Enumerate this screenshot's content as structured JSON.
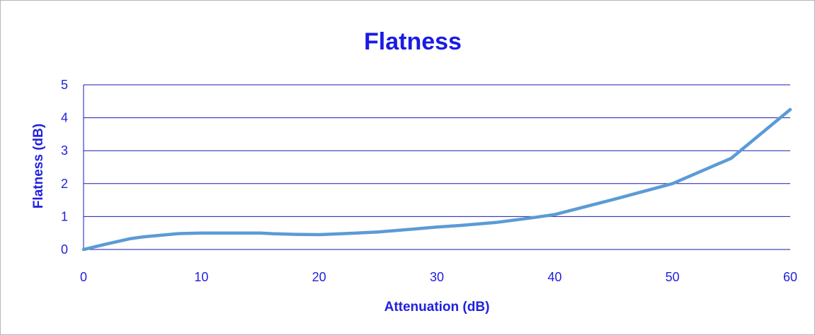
{
  "chart_data": {
    "type": "line",
    "title": "Flatness",
    "xlabel": "Attenuation (dB)",
    "ylabel": "Flatness (dB)",
    "xlim": [
      0,
      60
    ],
    "ylim": [
      0,
      5
    ],
    "x_ticks": [
      "0",
      "10",
      "20",
      "30",
      "40",
      "50",
      "60"
    ],
    "y_ticks": [
      "0",
      "1",
      "2",
      "3",
      "4",
      "5"
    ],
    "grid": true,
    "legend": "none",
    "series": [
      {
        "x": [
          0,
          2,
          4,
          5,
          8,
          10,
          12,
          15,
          16,
          18,
          20,
          22,
          25,
          28,
          30,
          32,
          35,
          38,
          40,
          45,
          50,
          55,
          60
        ],
        "y": [
          0,
          0.17,
          0.33,
          0.38,
          0.48,
          0.5,
          0.5,
          0.5,
          0.48,
          0.46,
          0.45,
          0.48,
          0.53,
          0.62,
          0.68,
          0.73,
          0.82,
          0.96,
          1.06,
          1.52,
          2.0,
          2.77,
          4.25
        ]
      }
    ]
  },
  "colors": {
    "text": "#1f1fe0",
    "title": "#1a1ae6",
    "grid": "#1a1ab0",
    "line": "#5b9bd5",
    "frame": "#b8b8b8"
  }
}
